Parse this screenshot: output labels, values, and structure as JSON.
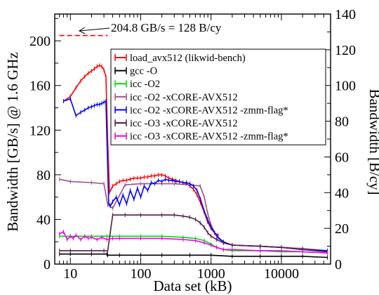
{
  "chart_data": {
    "type": "line",
    "xlabel": "Data set (kB)",
    "ylabel": "Bandwidth [GB/s] @ 1.6 GHz",
    "y2label": "Bandwidth [B/cy]",
    "x_scale": "log",
    "xlim": [
      6,
      50000
    ],
    "ylim": [
      0,
      224
    ],
    "y2lim": [
      0,
      140
    ],
    "x_tick_labels": [
      "10",
      "100",
      "1000",
      "10000"
    ],
    "x_ticks": [
      10,
      100,
      1000,
      10000
    ],
    "y_ticks": [
      0,
      40,
      80,
      120,
      160,
      200
    ],
    "y2_ticks": [
      0,
      20,
      40,
      60,
      80,
      100,
      120,
      140
    ],
    "grid": false,
    "legend_position": "upper-right",
    "annotation": {
      "text": "204.8 GB/s = 128 B/cy",
      "value": 204.8,
      "x_range": [
        7,
        34
      ],
      "color": "#ff0000"
    },
    "series": [
      {
        "name": "load_avx512 (likwid-bench)",
        "color": "#ff0000",
        "x": [
          8,
          10,
          12,
          14,
          16,
          18,
          20,
          22,
          24,
          26,
          28,
          30,
          32,
          34,
          36,
          40,
          45,
          50,
          56,
          63,
          71,
          80,
          90,
          100,
          112,
          126,
          141,
          158,
          178,
          200,
          224,
          251,
          282,
          316,
          355,
          398,
          447,
          501,
          562,
          631,
          708,
          794,
          891,
          1000,
          1122,
          1259
        ],
        "y": [
          146,
          150,
          158,
          164,
          168,
          171,
          173,
          175,
          177,
          178,
          177,
          174,
          168,
          110,
          64,
          70,
          72,
          74,
          75,
          75,
          76,
          77,
          77,
          77,
          78,
          78,
          79,
          79,
          80,
          80,
          79,
          77,
          76,
          75,
          74,
          73,
          72,
          70,
          67,
          62,
          55,
          47,
          38,
          32,
          28,
          26
        ]
      },
      {
        "name": "gcc -O",
        "color": "#000000",
        "x": [
          7,
          10,
          20,
          33,
          34,
          50,
          100,
          200,
          500,
          1000,
          2000,
          5000,
          10000,
          20000,
          45000
        ],
        "y": [
          9,
          9,
          9,
          9,
          8,
          8,
          8,
          8,
          8,
          8,
          7,
          7,
          7,
          7,
          6
        ]
      },
      {
        "name": "icc -O2",
        "color": "#00dd00",
        "x": [
          7,
          10,
          20,
          33,
          50,
          100,
          200,
          400,
          600,
          800,
          1000,
          1200,
          1500,
          2000,
          5000,
          10000,
          20000,
          45000
        ],
        "y": [
          25,
          25,
          25,
          25,
          25,
          25,
          25,
          24,
          23,
          21,
          18,
          15,
          13,
          12,
          12,
          11,
          11,
          10
        ]
      },
      {
        "name": "icc -O2 -xCORE-AVX512",
        "color": "#a0508c",
        "x": [
          7,
          10,
          20,
          30,
          34,
          40,
          60,
          100,
          200,
          300,
          500,
          700,
          800,
          900,
          1000,
          1200,
          1500,
          2000,
          5000,
          10000,
          20000,
          45000
        ],
        "y": [
          76,
          74,
          73,
          72,
          53,
          50,
          71,
          72,
          72,
          72,
          71,
          70,
          60,
          45,
          35,
          25,
          19,
          17,
          16,
          15,
          14,
          12
        ]
      },
      {
        "name": "icc -O2 -xCORE-AVX512 -zmm-flag*",
        "color": "#0000ff",
        "x": [
          8,
          10,
          12,
          14,
          16,
          18,
          20,
          22,
          24,
          26,
          28,
          30,
          32,
          35,
          37,
          40,
          45,
          50,
          56,
          63,
          71,
          80,
          90,
          100,
          112,
          126,
          141,
          158,
          178,
          200,
          224,
          251,
          282,
          316,
          355,
          398,
          447,
          501,
          562,
          631,
          708,
          794,
          891,
          1000,
          1122,
          1259,
          1500,
          2000,
          5000,
          10000,
          20000,
          45000
        ],
        "y": [
          146,
          148,
          133,
          136,
          138,
          140,
          141,
          142,
          143,
          143,
          144,
          145,
          146,
          55,
          52,
          56,
          60,
          53,
          62,
          54,
          66,
          58,
          68,
          60,
          70,
          66,
          73,
          72,
          75,
          74,
          76,
          75,
          75,
          74,
          74,
          73,
          73,
          72,
          70,
          66,
          58,
          48,
          40,
          33,
          28,
          24,
          20,
          17,
          16,
          15,
          13,
          12
        ]
      },
      {
        "name": "icc -O3 -xCORE-AVX512",
        "color": "#5a1a46",
        "x": [
          7,
          10,
          20,
          30,
          34,
          40,
          60,
          100,
          200,
          300,
          400,
          500,
          600,
          700,
          800,
          900,
          1000,
          1200,
          1500,
          2000,
          5000,
          10000,
          20000,
          45000
        ],
        "y": [
          12,
          12,
          12,
          12,
          12,
          44,
          44,
          44,
          44,
          44,
          43,
          42,
          40,
          37,
          33,
          28,
          25,
          22,
          19,
          17,
          16,
          15,
          13,
          11
        ]
      },
      {
        "name": "icc -O3 -xCORE-AVX512 -zmm-flag*",
        "color": "#ee00ee",
        "x": [
          7,
          8,
          9,
          10,
          11,
          12,
          14,
          16,
          18,
          20,
          24,
          28,
          33,
          40,
          50,
          100,
          200,
          400,
          600,
          800,
          1000,
          1200,
          1500,
          2000,
          5000,
          10000,
          20000,
          45000
        ],
        "y": [
          27,
          29,
          22,
          25,
          23,
          26,
          22,
          25,
          23,
          24,
          22,
          24,
          22,
          23,
          23,
          23,
          23,
          22,
          21,
          19,
          17,
          15,
          13,
          13,
          12,
          12,
          11,
          10
        ]
      }
    ]
  }
}
